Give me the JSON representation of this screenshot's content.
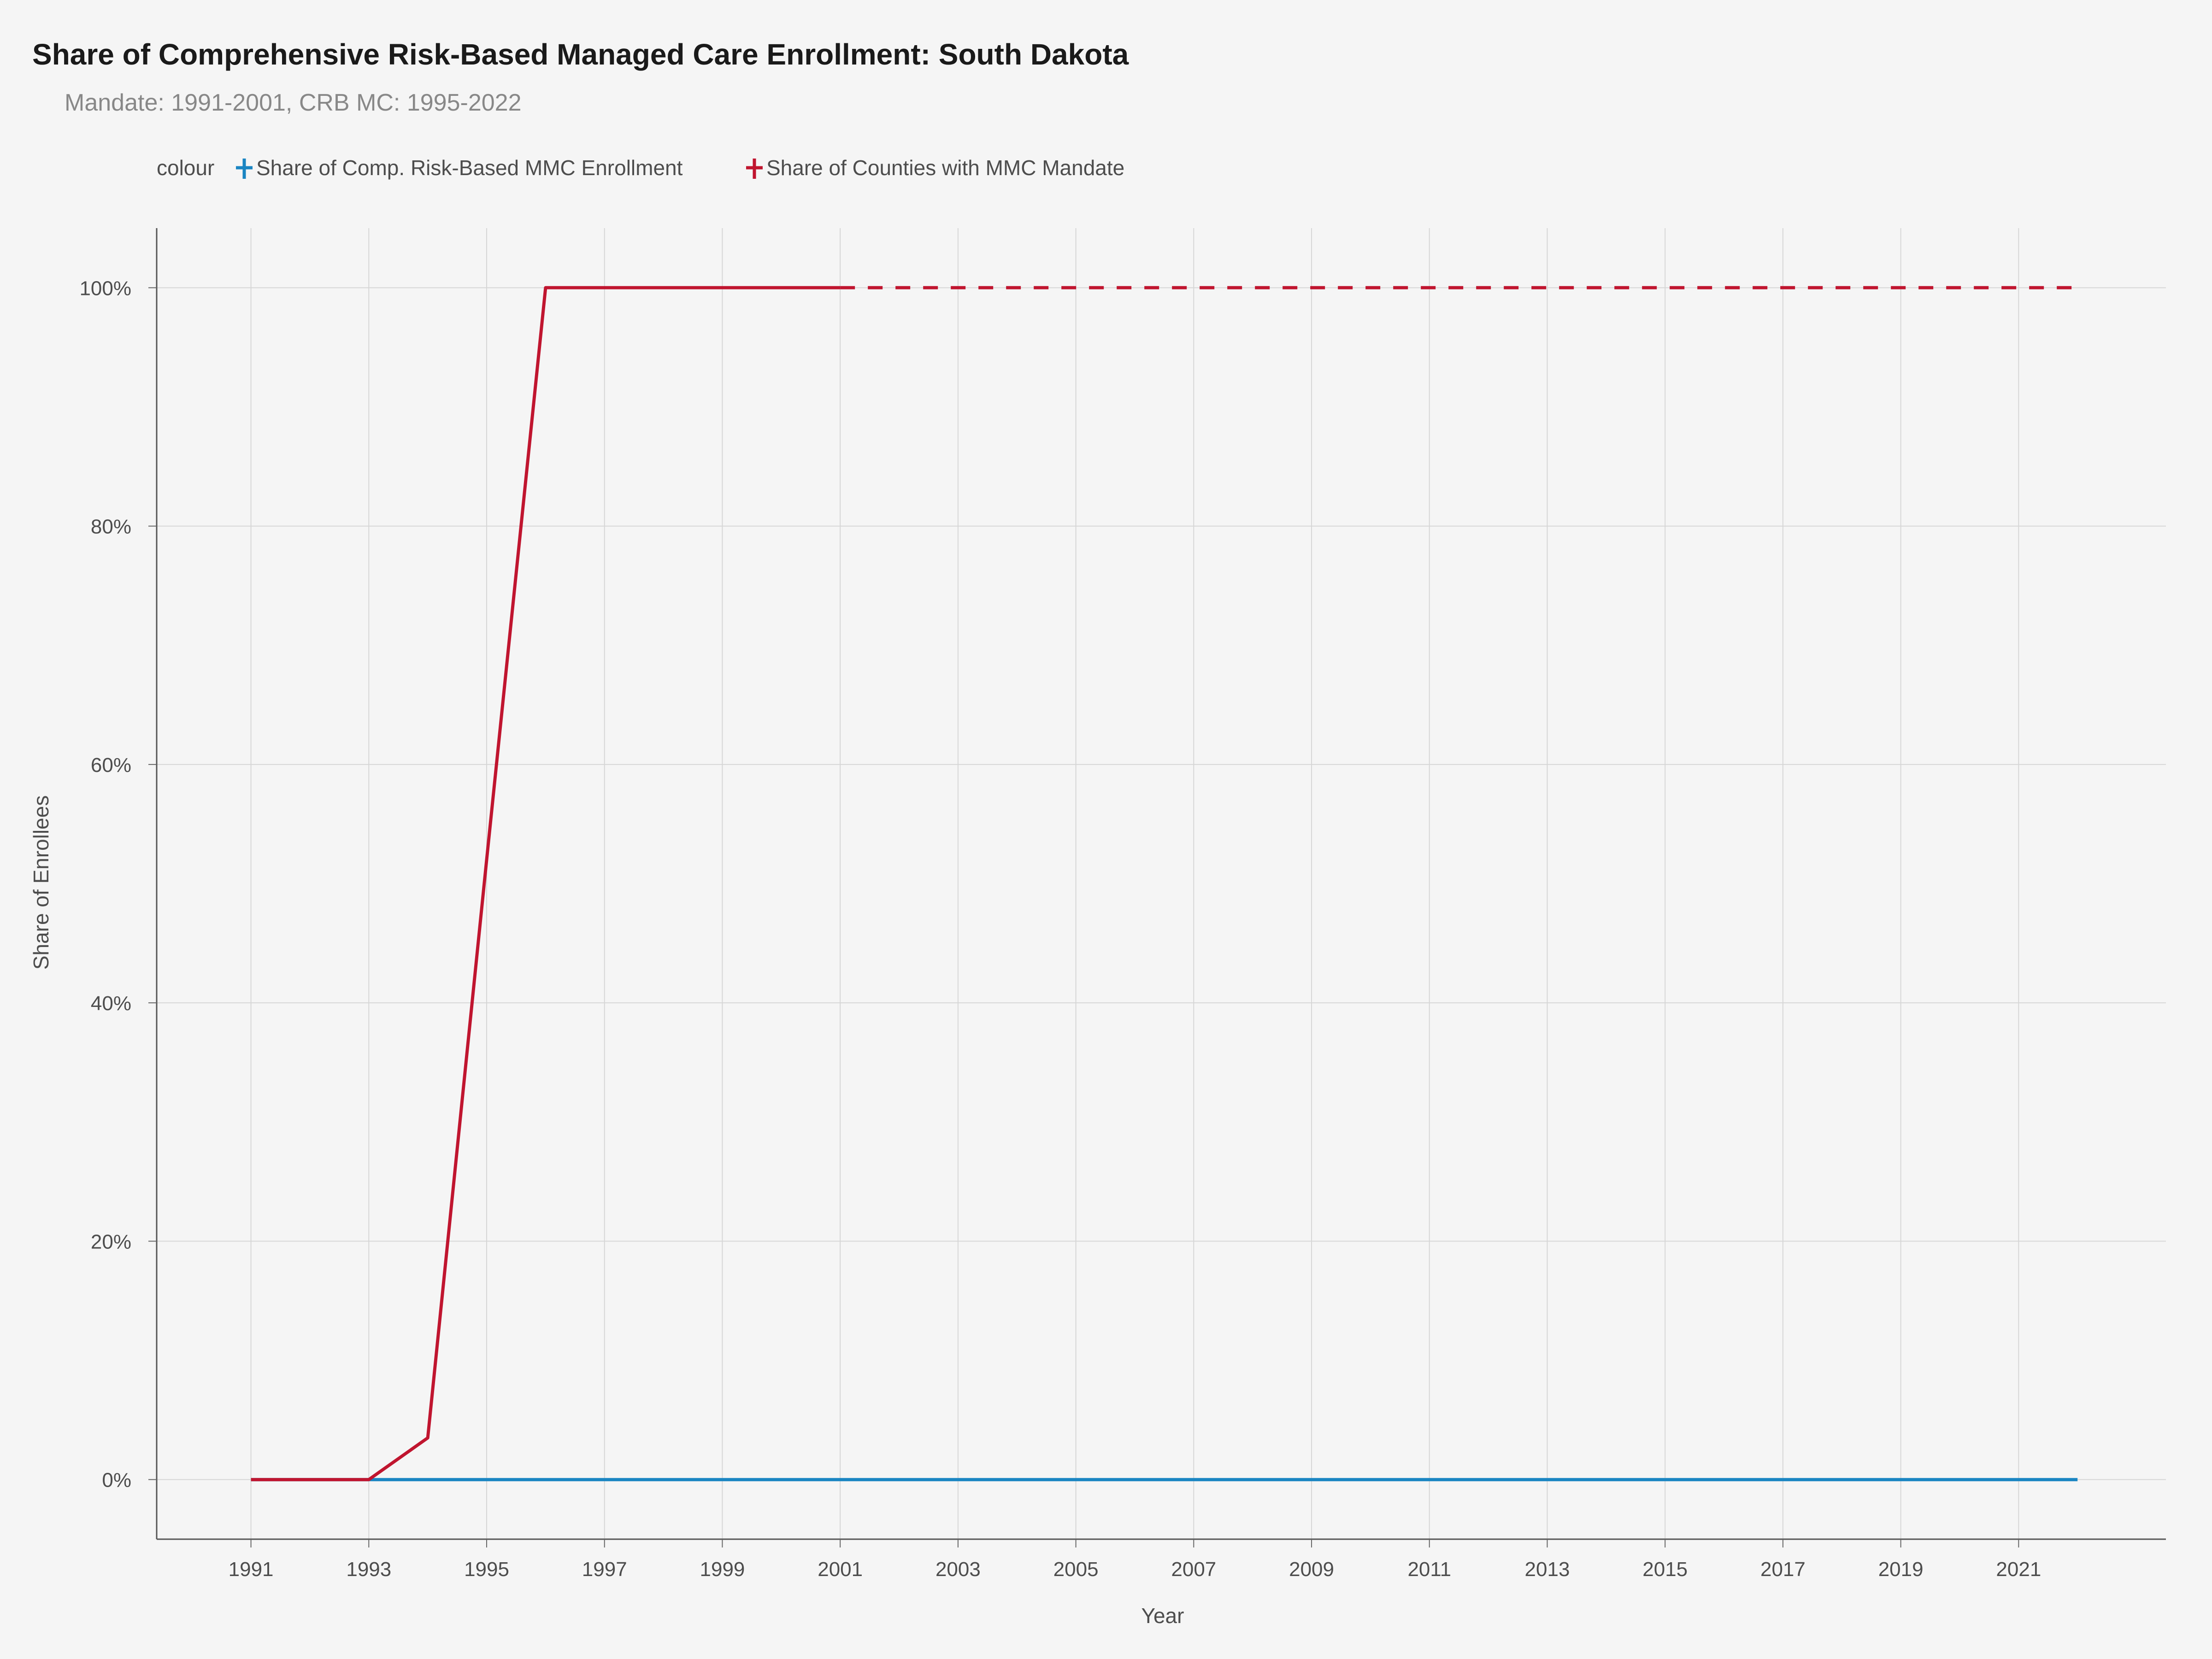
{
  "chart_data": {
    "type": "line",
    "title": "Share of Comprehensive Risk-Based Managed Care Enrollment: South Dakota",
    "subtitle": "Mandate: 1991-2001, CRB MC: 1995-2022",
    "xlabel": "Year",
    "ylabel": "Share of Enrollees",
    "xlim": [
      1989.4,
      2023.5
    ],
    "ylim": [
      -0.05,
      1.05
    ],
    "x_ticks": [
      1991,
      1993,
      1995,
      1997,
      1999,
      2001,
      2003,
      2005,
      2007,
      2009,
      2011,
      2013,
      2015,
      2017,
      2019,
      2021
    ],
    "y_ticks": [
      0,
      0.2,
      0.4,
      0.6,
      0.8,
      1.0
    ],
    "y_tick_labels": [
      "0%",
      "20%",
      "40%",
      "60%",
      "80%",
      "100%"
    ],
    "grid": true,
    "legend": {
      "title": "colour",
      "position": "top-left",
      "entries": [
        {
          "name": "Share of Comp. Risk-Based MMC Enrollment",
          "color": "#1a85c2"
        },
        {
          "name": "Share of Counties with MMC Mandate",
          "color": "#c0152f"
        }
      ]
    },
    "series": [
      {
        "name": "Share of Comp. Risk-Based MMC Enrollment",
        "color": "#1a85c2",
        "style": "solid",
        "x": [
          1991,
          1992,
          1993,
          1994,
          1995,
          1996,
          1997,
          1998,
          1999,
          2000,
          2001,
          2002,
          2003,
          2004,
          2005,
          2006,
          2007,
          2008,
          2009,
          2010,
          2011,
          2012,
          2013,
          2014,
          2015,
          2016,
          2017,
          2018,
          2019,
          2020,
          2021,
          2022
        ],
        "y": [
          0,
          0,
          0,
          0,
          0,
          0,
          0,
          0,
          0,
          0,
          0,
          0,
          0,
          0,
          0,
          0,
          0,
          0,
          0,
          0,
          0,
          0,
          0,
          0,
          0,
          0,
          0,
          0,
          0,
          0,
          0,
          0
        ]
      },
      {
        "name": "Share of Counties with MMC Mandate",
        "color": "#c0152f",
        "style": "solid",
        "x": [
          1991,
          1992,
          1993,
          1994,
          1995,
          1996,
          1997,
          1998,
          1999,
          2000,
          2001
        ],
        "y": [
          0,
          0,
          0,
          0.035,
          0.52,
          1.0,
          1.0,
          1.0,
          1.0,
          1.0,
          1.0
        ]
      },
      {
        "name": "Share of Counties with MMC Mandate",
        "color": "#c0152f",
        "style": "dashed",
        "x": [
          2001,
          2022
        ],
        "y": [
          1.0,
          1.0
        ]
      }
    ]
  }
}
